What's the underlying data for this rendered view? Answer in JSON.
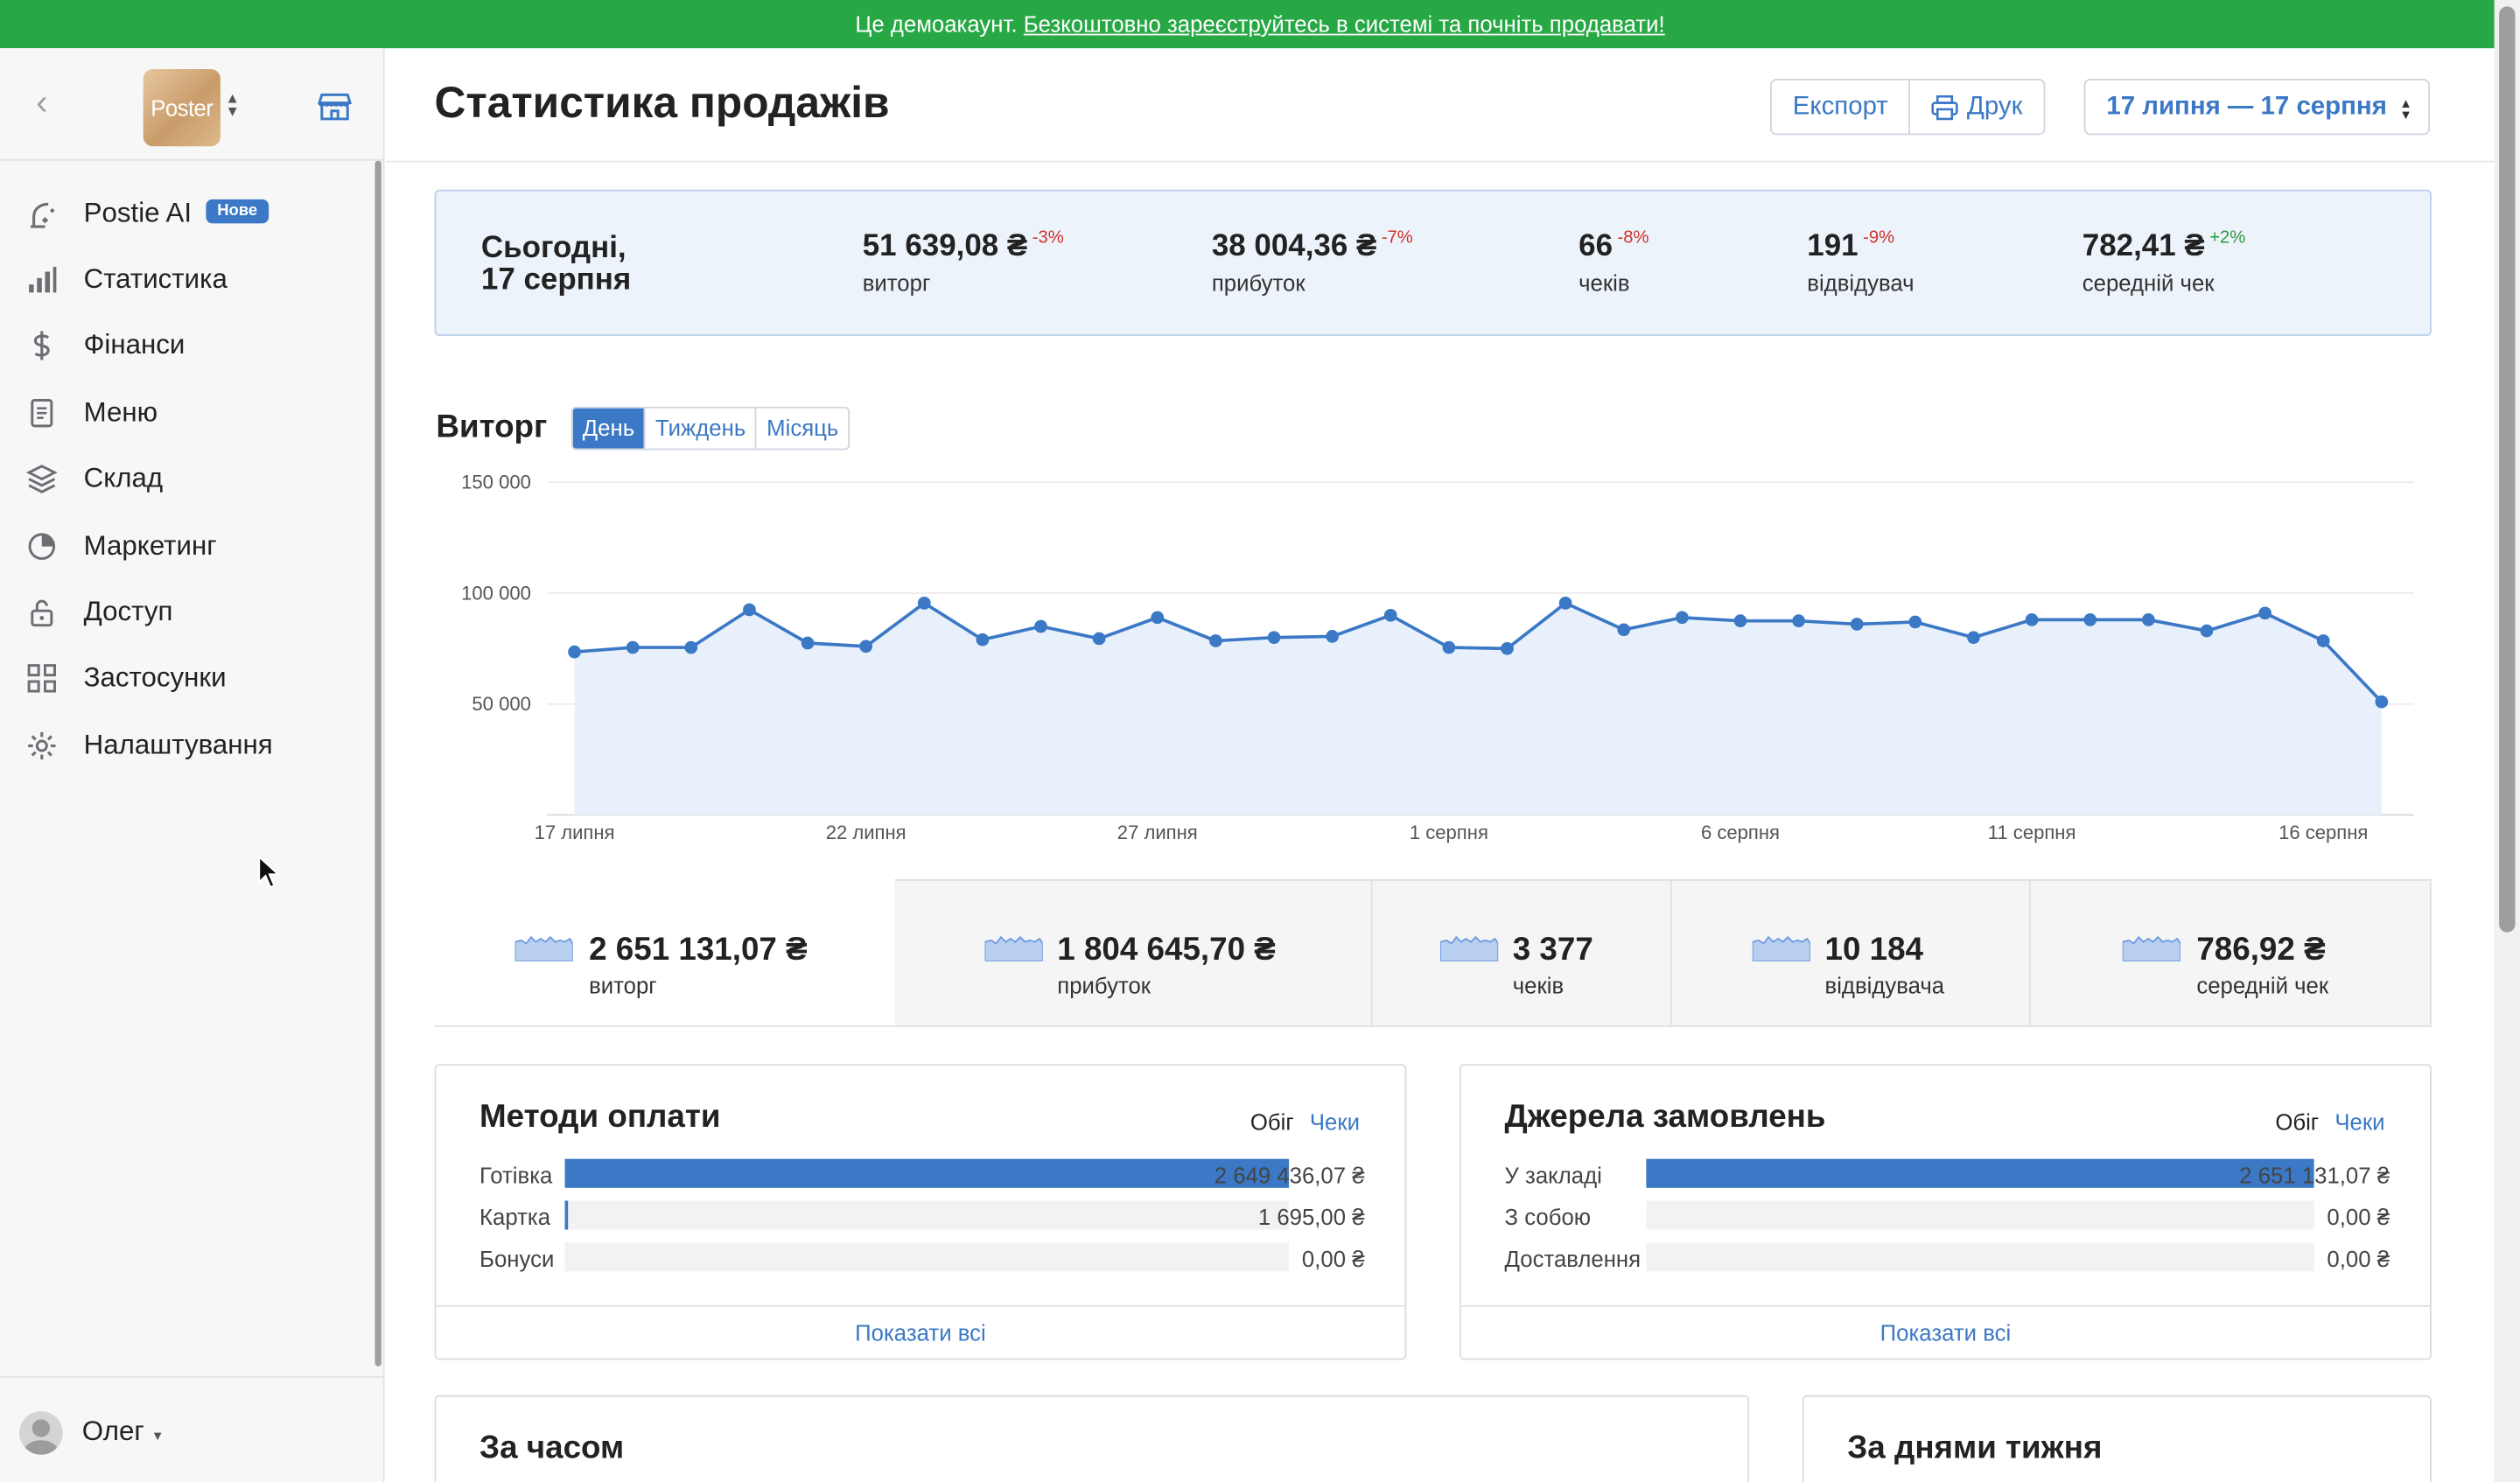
{
  "banner": {
    "text": "Це демоакаунт. ",
    "link": "Безкоштовно зареєструйтесь в системі та почніть продавати!"
  },
  "sidebar": {
    "logo_text": "Poster",
    "items": [
      {
        "label": "Postie AI",
        "icon": "ai-sparkle-icon",
        "badge": "Нове"
      },
      {
        "label": "Статистика",
        "icon": "bar-chart-icon"
      },
      {
        "label": "Фінанси",
        "icon": "dollar-icon"
      },
      {
        "label": "Меню",
        "icon": "document-icon"
      },
      {
        "label": "Склад",
        "icon": "layers-icon"
      },
      {
        "label": "Маркетинг",
        "icon": "marketing-icon"
      },
      {
        "label": "Доступ",
        "icon": "lock-icon"
      },
      {
        "label": "Застосунки",
        "icon": "apps-grid-icon"
      },
      {
        "label": "Налаштування",
        "icon": "gear-icon"
      }
    ],
    "user": "Олег"
  },
  "header": {
    "title": "Статистика продажів",
    "export_label": "Експорт",
    "print_label": "Друк",
    "date_range": "17 липня — 17 серпня"
  },
  "today": {
    "title_line1": "Сьогодні,",
    "title_line2": "17 серпня",
    "kpis": [
      {
        "value": "51 639,08 ₴",
        "delta": "-3%",
        "trend": "neg",
        "label": "виторг"
      },
      {
        "value": "38 004,36 ₴",
        "delta": "-7%",
        "trend": "neg",
        "label": "прибуток"
      },
      {
        "value": "66",
        "delta": "-8%",
        "trend": "neg",
        "label": "чеків"
      },
      {
        "value": "191",
        "delta": "-9%",
        "trend": "neg",
        "label": "відвідувач"
      },
      {
        "value": "782,41 ₴",
        "delta": "+2%",
        "trend": "pos",
        "label": "середній чек"
      }
    ]
  },
  "revenue": {
    "title": "Виторг",
    "tabs": [
      "День",
      "Тиждень",
      "Місяць"
    ],
    "active_tab": "День"
  },
  "chart_data": {
    "type": "area",
    "title": "Виторг",
    "x": [
      "17 липня",
      "18 липня",
      "19 липня",
      "20 липня",
      "21 липня",
      "22 липня",
      "23 липня",
      "24 липня",
      "25 липня",
      "26 липня",
      "27 липня",
      "28 липня",
      "29 липня",
      "30 липня",
      "31 липня",
      "1 серпня",
      "2 серпня",
      "3 серпня",
      "4 серпня",
      "5 серпня",
      "6 серпня",
      "7 серпня",
      "8 серпня",
      "9 серпня",
      "10 серпня",
      "11 серпня",
      "12 серпня",
      "13 серпня",
      "14 серпня",
      "15 серпня",
      "16 серпня",
      "17 серпня"
    ],
    "x_tick_labels": [
      "17 липня",
      "22 липня",
      "27 липня",
      "1 серпня",
      "6 серпня",
      "11 серпня",
      "16 серпня"
    ],
    "x_tick_indices": [
      0,
      5,
      10,
      15,
      20,
      25,
      30
    ],
    "y_tick_labels": [
      "150 000",
      "100 000",
      "50 000"
    ],
    "y_ticks": [
      150000,
      100000,
      50000
    ],
    "ylim": [
      0,
      150000
    ],
    "series": [
      {
        "values": [
          73500,
          75500,
          75500,
          92500,
          77500,
          76000,
          95500,
          79000,
          85000,
          79500,
          89000,
          78500,
          80000,
          80500,
          90000,
          75500,
          75000,
          95500,
          83500,
          89000,
          87500,
          87500,
          86000,
          87000,
          80000,
          88000,
          88000,
          88000,
          83000,
          91000,
          78500,
          51000
        ]
      }
    ],
    "grid": true,
    "colors": {
      "line": "#3b78c5",
      "fill": "#e8f1fb"
    }
  },
  "totals": [
    {
      "value": "2 651 131,07 ₴",
      "label": "виторг",
      "selected": true
    },
    {
      "value": "1 804 645,70 ₴",
      "label": "прибуток",
      "selected": false
    },
    {
      "value": "3 377",
      "label": "чеків",
      "selected": false
    },
    {
      "value": "10 184",
      "label": "відвідувача",
      "selected": false
    },
    {
      "value": "786,92 ₴",
      "label": "середній чек",
      "selected": false
    }
  ],
  "payments": {
    "title": "Методи оплати",
    "switch_on": "Обіг",
    "switch_off": "Чеки",
    "rows": [
      {
        "label": "Готівка",
        "value": "2 649 436,07 ₴",
        "share": 0.9994
      },
      {
        "label": "Картка",
        "value": "1 695,00 ₴",
        "share": 0.0006
      },
      {
        "label": "Бонуси",
        "value": "0,00 ₴",
        "share": 0
      }
    ],
    "footer": "Показати всі"
  },
  "sources": {
    "title": "Джерела замовлень",
    "switch_on": "Обіг",
    "switch_off": "Чеки",
    "rows": [
      {
        "label": "У закладі",
        "value": "2 651 131,07 ₴",
        "share": 1
      },
      {
        "label": "З собою",
        "value": "0,00 ₴",
        "share": 0
      },
      {
        "label": "Доставлення",
        "value": "0,00 ₴",
        "share": 0
      }
    ],
    "footer": "Показати всі"
  },
  "by_time": {
    "title": "За часом"
  },
  "by_weekday": {
    "title": "За днями тижня"
  },
  "colors": {
    "accent": "#3b78c5",
    "banner": "#27a845",
    "negative": "#d0312d",
    "positive": "#2a9b3c"
  }
}
